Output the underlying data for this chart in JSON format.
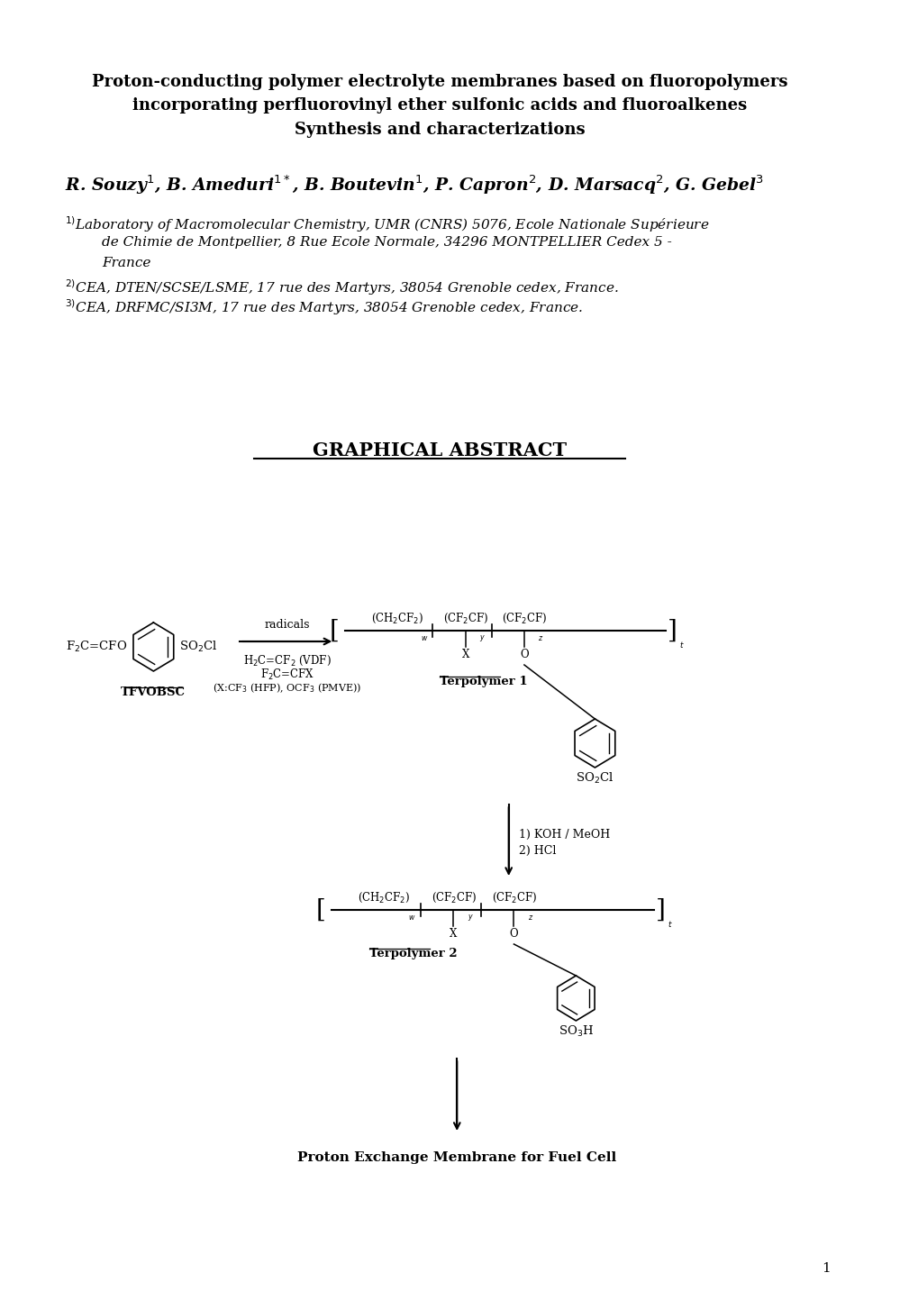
{
  "bg_color": "#ffffff",
  "text_color": "#000000",
  "title_line1": "Proton-conducting polymer electrolyte membranes based on fluoropolymers",
  "title_line2": "incorporating perfluorovinyl ether sulfonic acids and fluoroalkenes",
  "title_line3": "Synthesis and characterizations",
  "graphical_abstract": "GRAPHICAL ABSTRACT",
  "page_number": "1"
}
